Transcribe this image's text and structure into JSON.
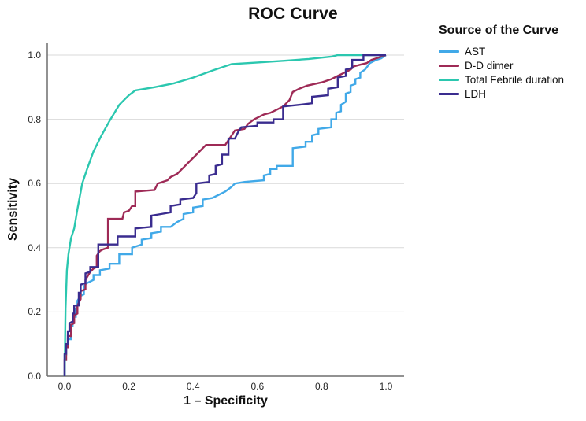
{
  "chart_data": {
    "type": "line",
    "title": "ROC Curve",
    "xlabel": "1 – Specificity",
    "ylabel": "Sensitivity",
    "legend_title": "Source of the Curve",
    "legend_position": "right",
    "grid": "horizontal",
    "xlim": [
      0.0,
      1.0
    ],
    "ylim": [
      0.0,
      1.0
    ],
    "x_ticks": [
      "0.0",
      "0.2",
      "0.4",
      "0.6",
      "0.8",
      "1.0"
    ],
    "y_ticks": [
      "0.0",
      "0.2",
      "0.4",
      "0.6",
      "0.8",
      "1.0"
    ],
    "colors": {
      "axis": "#6e6e6e",
      "gridline": "#d9d9d9",
      "text": "#111111",
      "background": "#ffffff"
    },
    "series": [
      {
        "name": "AST",
        "color": "#41a9e8",
        "points": [
          [
            0,
            0
          ],
          [
            0,
            0.065
          ],
          [
            0.005,
            0.065
          ],
          [
            0.005,
            0.09
          ],
          [
            0.01,
            0.09
          ],
          [
            0.01,
            0.115
          ],
          [
            0.02,
            0.115
          ],
          [
            0.02,
            0.155
          ],
          [
            0.025,
            0.155
          ],
          [
            0.025,
            0.185
          ],
          [
            0.035,
            0.185
          ],
          [
            0.035,
            0.21
          ],
          [
            0.04,
            0.21
          ],
          [
            0.04,
            0.235
          ],
          [
            0.05,
            0.25
          ],
          [
            0.06,
            0.255
          ],
          [
            0.06,
            0.28
          ],
          [
            0.07,
            0.29
          ],
          [
            0.09,
            0.3
          ],
          [
            0.09,
            0.315
          ],
          [
            0.11,
            0.315
          ],
          [
            0.11,
            0.33
          ],
          [
            0.14,
            0.335
          ],
          [
            0.14,
            0.35
          ],
          [
            0.17,
            0.35
          ],
          [
            0.17,
            0.38
          ],
          [
            0.21,
            0.38
          ],
          [
            0.21,
            0.4
          ],
          [
            0.24,
            0.41
          ],
          [
            0.24,
            0.425
          ],
          [
            0.27,
            0.43
          ],
          [
            0.27,
            0.445
          ],
          [
            0.3,
            0.45
          ],
          [
            0.3,
            0.465
          ],
          [
            0.33,
            0.465
          ],
          [
            0.35,
            0.48
          ],
          [
            0.37,
            0.49
          ],
          [
            0.37,
            0.505
          ],
          [
            0.4,
            0.51
          ],
          [
            0.4,
            0.525
          ],
          [
            0.43,
            0.53
          ],
          [
            0.43,
            0.55
          ],
          [
            0.46,
            0.555
          ],
          [
            0.48,
            0.565
          ],
          [
            0.5,
            0.575
          ],
          [
            0.52,
            0.59
          ],
          [
            0.53,
            0.6
          ],
          [
            0.56,
            0.605
          ],
          [
            0.62,
            0.61
          ],
          [
            0.62,
            0.625
          ],
          [
            0.64,
            0.63
          ],
          [
            0.64,
            0.645
          ],
          [
            0.66,
            0.645
          ],
          [
            0.66,
            0.655
          ],
          [
            0.71,
            0.655
          ],
          [
            0.71,
            0.71
          ],
          [
            0.75,
            0.715
          ],
          [
            0.75,
            0.73
          ],
          [
            0.77,
            0.73
          ],
          [
            0.77,
            0.75
          ],
          [
            0.79,
            0.755
          ],
          [
            0.79,
            0.77
          ],
          [
            0.83,
            0.775
          ],
          [
            0.83,
            0.8
          ],
          [
            0.845,
            0.8
          ],
          [
            0.845,
            0.82
          ],
          [
            0.86,
            0.825
          ],
          [
            0.86,
            0.845
          ],
          [
            0.875,
            0.855
          ],
          [
            0.875,
            0.88
          ],
          [
            0.89,
            0.885
          ],
          [
            0.89,
            0.905
          ],
          [
            0.905,
            0.91
          ],
          [
            0.905,
            0.925
          ],
          [
            0.92,
            0.93
          ],
          [
            0.92,
            0.945
          ],
          [
            0.935,
            0.955
          ],
          [
            0.95,
            0.975
          ],
          [
            0.97,
            0.985
          ],
          [
            0.985,
            0.99
          ],
          [
            1,
            1
          ]
        ]
      },
      {
        "name": "D-D dimer",
        "color": "#9e2a56",
        "points": [
          [
            0,
            0
          ],
          [
            0,
            0.05
          ],
          [
            0.005,
            0.05
          ],
          [
            0.005,
            0.09
          ],
          [
            0.01,
            0.09
          ],
          [
            0.01,
            0.125
          ],
          [
            0.02,
            0.125
          ],
          [
            0.02,
            0.16
          ],
          [
            0.03,
            0.165
          ],
          [
            0.03,
            0.19
          ],
          [
            0.04,
            0.195
          ],
          [
            0.04,
            0.22
          ],
          [
            0.05,
            0.24
          ],
          [
            0.05,
            0.265
          ],
          [
            0.065,
            0.27
          ],
          [
            0.065,
            0.3
          ],
          [
            0.08,
            0.325
          ],
          [
            0.09,
            0.335
          ],
          [
            0.1,
            0.34
          ],
          [
            0.1,
            0.375
          ],
          [
            0.11,
            0.39
          ],
          [
            0.12,
            0.395
          ],
          [
            0.135,
            0.4
          ],
          [
            0.135,
            0.49
          ],
          [
            0.18,
            0.49
          ],
          [
            0.185,
            0.51
          ],
          [
            0.2,
            0.515
          ],
          [
            0.21,
            0.53
          ],
          [
            0.22,
            0.53
          ],
          [
            0.22,
            0.575
          ],
          [
            0.28,
            0.58
          ],
          [
            0.29,
            0.6
          ],
          [
            0.32,
            0.61
          ],
          [
            0.33,
            0.62
          ],
          [
            0.35,
            0.63
          ],
          [
            0.37,
            0.65
          ],
          [
            0.39,
            0.67
          ],
          [
            0.41,
            0.69
          ],
          [
            0.43,
            0.71
          ],
          [
            0.44,
            0.72
          ],
          [
            0.5,
            0.72
          ],
          [
            0.51,
            0.735
          ],
          [
            0.52,
            0.75
          ],
          [
            0.53,
            0.765
          ],
          [
            0.56,
            0.77
          ],
          [
            0.57,
            0.785
          ],
          [
            0.59,
            0.8
          ],
          [
            0.62,
            0.815
          ],
          [
            0.64,
            0.82
          ],
          [
            0.66,
            0.83
          ],
          [
            0.68,
            0.84
          ],
          [
            0.7,
            0.86
          ],
          [
            0.71,
            0.885
          ],
          [
            0.73,
            0.895
          ],
          [
            0.755,
            0.905
          ],
          [
            0.8,
            0.915
          ],
          [
            0.83,
            0.925
          ],
          [
            0.85,
            0.935
          ],
          [
            0.87,
            0.945
          ],
          [
            0.89,
            0.955
          ],
          [
            0.9,
            0.965
          ],
          [
            0.92,
            0.97
          ],
          [
            0.94,
            0.975
          ],
          [
            0.955,
            0.985
          ],
          [
            0.97,
            0.99
          ],
          [
            1,
            1
          ]
        ]
      },
      {
        "name": "Total Febrile duration",
        "color": "#2bc7af",
        "points": [
          [
            0,
            0
          ],
          [
            0.003,
            0.21
          ],
          [
            0.007,
            0.33
          ],
          [
            0.012,
            0.38
          ],
          [
            0.02,
            0.43
          ],
          [
            0.03,
            0.46
          ],
          [
            0.04,
            0.52
          ],
          [
            0.055,
            0.6
          ],
          [
            0.07,
            0.645
          ],
          [
            0.09,
            0.7
          ],
          [
            0.115,
            0.75
          ],
          [
            0.14,
            0.795
          ],
          [
            0.17,
            0.845
          ],
          [
            0.2,
            0.875
          ],
          [
            0.22,
            0.89
          ],
          [
            0.28,
            0.9
          ],
          [
            0.34,
            0.912
          ],
          [
            0.4,
            0.93
          ],
          [
            0.46,
            0.952
          ],
          [
            0.52,
            0.972
          ],
          [
            0.6,
            0.977
          ],
          [
            0.68,
            0.982
          ],
          [
            0.76,
            0.988
          ],
          [
            0.83,
            0.995
          ],
          [
            0.85,
            1
          ],
          [
            1,
            1
          ]
        ]
      },
      {
        "name": "LDH",
        "color": "#3a2c8f",
        "points": [
          [
            0,
            0
          ],
          [
            0,
            0.07
          ],
          [
            0.005,
            0.07
          ],
          [
            0.005,
            0.1
          ],
          [
            0.01,
            0.1
          ],
          [
            0.01,
            0.14
          ],
          [
            0.015,
            0.14
          ],
          [
            0.015,
            0.165
          ],
          [
            0.025,
            0.17
          ],
          [
            0.025,
            0.195
          ],
          [
            0.03,
            0.195
          ],
          [
            0.03,
            0.22
          ],
          [
            0.044,
            0.22
          ],
          [
            0.044,
            0.26
          ],
          [
            0.05,
            0.26
          ],
          [
            0.05,
            0.285
          ],
          [
            0.065,
            0.29
          ],
          [
            0.065,
            0.32
          ],
          [
            0.08,
            0.325
          ],
          [
            0.08,
            0.34
          ],
          [
            0.105,
            0.34
          ],
          [
            0.105,
            0.41
          ],
          [
            0.165,
            0.41
          ],
          [
            0.165,
            0.435
          ],
          [
            0.22,
            0.435
          ],
          [
            0.22,
            0.46
          ],
          [
            0.27,
            0.465
          ],
          [
            0.27,
            0.5
          ],
          [
            0.3,
            0.505
          ],
          [
            0.33,
            0.51
          ],
          [
            0.33,
            0.53
          ],
          [
            0.36,
            0.535
          ],
          [
            0.36,
            0.55
          ],
          [
            0.4,
            0.555
          ],
          [
            0.41,
            0.57
          ],
          [
            0.41,
            0.6
          ],
          [
            0.45,
            0.605
          ],
          [
            0.45,
            0.625
          ],
          [
            0.47,
            0.63
          ],
          [
            0.47,
            0.655
          ],
          [
            0.49,
            0.66
          ],
          [
            0.49,
            0.69
          ],
          [
            0.51,
            0.69
          ],
          [
            0.51,
            0.74
          ],
          [
            0.53,
            0.74
          ],
          [
            0.54,
            0.76
          ],
          [
            0.55,
            0.775
          ],
          [
            0.6,
            0.78
          ],
          [
            0.6,
            0.79
          ],
          [
            0.65,
            0.79
          ],
          [
            0.65,
            0.8
          ],
          [
            0.68,
            0.8
          ],
          [
            0.68,
            0.84
          ],
          [
            0.73,
            0.845
          ],
          [
            0.77,
            0.85
          ],
          [
            0.77,
            0.87
          ],
          [
            0.82,
            0.875
          ],
          [
            0.82,
            0.895
          ],
          [
            0.85,
            0.9
          ],
          [
            0.85,
            0.93
          ],
          [
            0.875,
            0.935
          ],
          [
            0.875,
            0.955
          ],
          [
            0.895,
            0.96
          ],
          [
            0.895,
            0.985
          ],
          [
            0.93,
            0.985
          ],
          [
            0.93,
            1
          ],
          [
            1,
            1
          ]
        ]
      }
    ]
  }
}
